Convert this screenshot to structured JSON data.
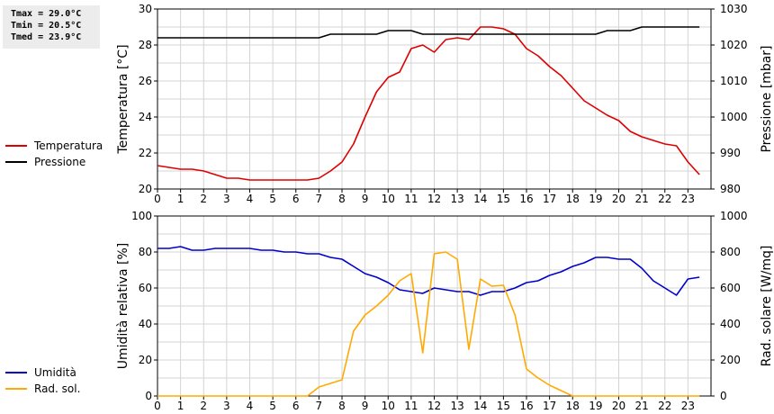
{
  "stats": {
    "tmax": "Tmax = 29.0°C",
    "tmin": "Tmin = 20.5°C",
    "tmed": "Tmed = 23.9°C"
  },
  "colors": {
    "red": "#dd0000",
    "black": "#000000",
    "blue": "#0000cc",
    "orange": "#ffaa00",
    "grid": "#d4d4d4"
  },
  "chart_data": [
    {
      "type": "line",
      "ylabel_left": "Temperatura [°C]",
      "ylabel_right": "Pressione [mbar]",
      "xlim": [
        0,
        24
      ],
      "xticks": [
        0,
        1,
        2,
        3,
        4,
        5,
        6,
        7,
        8,
        9,
        10,
        11,
        12,
        13,
        14,
        15,
        16,
        17,
        18,
        19,
        20,
        21,
        22,
        23
      ],
      "ylim_left": [
        20,
        30
      ],
      "yticks_left": [
        20,
        22,
        24,
        26,
        28,
        30
      ],
      "ylim_right": [
        980,
        1030
      ],
      "yticks_right": [
        980,
        990,
        1000,
        1010,
        1020,
        1030
      ],
      "grid": true,
      "legend_position": "left",
      "series": [
        {
          "name": "Temperatura",
          "axis": "left",
          "color": "#dd0000",
          "x": [
            0,
            0.5,
            1,
            1.5,
            2,
            2.5,
            3,
            3.5,
            4,
            4.5,
            5,
            5.5,
            6,
            6.5,
            7,
            7.5,
            8,
            8.5,
            9,
            9.5,
            10,
            10.5,
            11,
            11.5,
            12,
            12.5,
            13,
            13.5,
            14,
            14.5,
            15,
            15.5,
            16,
            16.5,
            17,
            17.5,
            18,
            18.5,
            19,
            19.5,
            20,
            20.5,
            21,
            21.5,
            22,
            22.5,
            23,
            23.5
          ],
          "y": [
            21.3,
            21.2,
            21.1,
            21.1,
            21.0,
            20.8,
            20.6,
            20.6,
            20.5,
            20.5,
            20.5,
            20.5,
            20.5,
            20.5,
            20.6,
            21.0,
            21.5,
            22.5,
            24.0,
            25.4,
            26.2,
            26.5,
            27.8,
            28.0,
            27.6,
            28.3,
            28.4,
            28.3,
            29.0,
            29.0,
            28.9,
            28.6,
            27.8,
            27.4,
            26.8,
            26.3,
            25.6,
            24.9,
            24.5,
            24.1,
            23.8,
            23.2,
            22.9,
            22.7,
            22.5,
            22.4,
            21.5,
            20.8
          ]
        },
        {
          "name": "Pressione",
          "axis": "right",
          "color": "#000000",
          "x": [
            0,
            1,
            2,
            3,
            4,
            5,
            6,
            7,
            7.5,
            8,
            9,
            9.5,
            10,
            11,
            11.5,
            12,
            13,
            14,
            15,
            16,
            17,
            18,
            19,
            19.5,
            20,
            20.5,
            21,
            22,
            23,
            23.5
          ],
          "y": [
            1022,
            1022,
            1022,
            1022,
            1022,
            1022,
            1022,
            1022,
            1023,
            1023,
            1023,
            1023,
            1024,
            1024,
            1023,
            1023,
            1023,
            1023,
            1023,
            1023,
            1023,
            1023,
            1023,
            1024,
            1024,
            1024,
            1025,
            1025,
            1025,
            1025
          ]
        }
      ]
    },
    {
      "type": "line",
      "ylabel_left": "Umidità relativa [%]",
      "ylabel_right": "Rad. solare [W/mq]",
      "xlim": [
        0,
        24
      ],
      "xticks": [
        0,
        1,
        2,
        3,
        4,
        5,
        6,
        7,
        8,
        9,
        10,
        11,
        12,
        13,
        14,
        15,
        16,
        17,
        18,
        19,
        20,
        21,
        22,
        23
      ],
      "ylim_left": [
        0,
        100
      ],
      "yticks_left": [
        0,
        20,
        40,
        60,
        80,
        100
      ],
      "ylim_right": [
        0,
        1000
      ],
      "yticks_right": [
        0,
        200,
        400,
        600,
        800,
        1000
      ],
      "grid": true,
      "legend_position": "left",
      "series": [
        {
          "name": "Umidità",
          "axis": "left",
          "color": "#0000cc",
          "x": [
            0,
            0.5,
            1,
            1.5,
            2,
            2.5,
            3,
            3.5,
            4,
            4.5,
            5,
            5.5,
            6,
            6.5,
            7,
            7.5,
            8,
            8.5,
            9,
            9.5,
            10,
            10.5,
            11,
            11.5,
            12,
            12.5,
            13,
            13.5,
            14,
            14.5,
            15,
            15.5,
            16,
            16.5,
            17,
            17.5,
            18,
            18.5,
            19,
            19.5,
            20,
            20.5,
            21,
            21.5,
            22,
            22.5,
            23,
            23.5
          ],
          "y": [
            82,
            82,
            83,
            81,
            81,
            82,
            82,
            82,
            82,
            81,
            81,
            80,
            80,
            79,
            79,
            77,
            76,
            72,
            68,
            66,
            63,
            59,
            58,
            57,
            60,
            59,
            58,
            58,
            56,
            58,
            58,
            60,
            63,
            64,
            67,
            69,
            72,
            74,
            77,
            77,
            76,
            76,
            71,
            64,
            60,
            56,
            65,
            66
          ]
        },
        {
          "name": "Rad. sol.",
          "axis": "right",
          "color": "#ffaa00",
          "x": [
            0,
            0.5,
            1,
            1.5,
            2,
            2.5,
            3,
            3.5,
            4,
            4.5,
            5,
            5.5,
            6,
            6.5,
            7,
            7.5,
            8,
            8.5,
            9,
            9.5,
            10,
            10.5,
            11,
            11.5,
            12,
            12.5,
            13,
            13.5,
            14,
            14.5,
            15,
            15.5,
            16,
            16.5,
            17,
            17.5,
            18,
            18.5,
            19,
            19.5,
            20,
            20.5,
            21,
            21.5,
            22,
            22.5,
            23,
            23.5
          ],
          "y": [
            0,
            0,
            0,
            0,
            0,
            0,
            0,
            0,
            0,
            0,
            0,
            0,
            0,
            0,
            50,
            70,
            90,
            360,
            450,
            500,
            560,
            640,
            680,
            240,
            790,
            800,
            760,
            260,
            650,
            610,
            615,
            450,
            150,
            100,
            60,
            30,
            0,
            0,
            0,
            0,
            0,
            0,
            0,
            0,
            0,
            0,
            0,
            0
          ]
        }
      ]
    }
  ]
}
